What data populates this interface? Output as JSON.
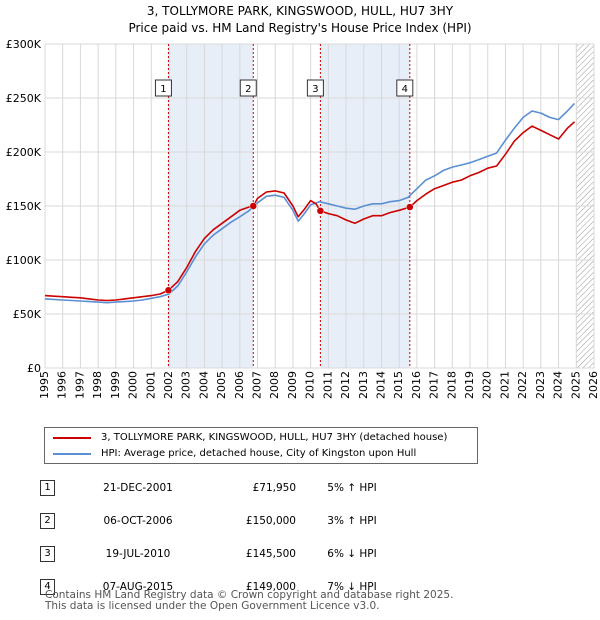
{
  "title_line1": "3, TOLLYMORE PARK, KINGSWOOD, HULL, HU7 3HY",
  "title_line2": "Price paid vs. HM Land Registry's House Price Index (HPI)",
  "chart_data": {
    "type": "line",
    "title": "3, TOLLYMORE PARK, KINGSWOOD, HULL, HU7 3HY — Price paid vs. HM Land Registry's House Price Index (HPI)",
    "xlabel": "",
    "ylabel": "",
    "xlim": [
      1995,
      2026
    ],
    "ylim": [
      0,
      300000
    ],
    "x_ticks": [
      1995,
      1996,
      1997,
      1998,
      1999,
      2000,
      2001,
      2002,
      2003,
      2004,
      2005,
      2006,
      2007,
      2008,
      2009,
      2010,
      2011,
      2012,
      2013,
      2014,
      2015,
      2016,
      2017,
      2018,
      2019,
      2020,
      2021,
      2022,
      2023,
      2024,
      2025,
      2026
    ],
    "y_ticks": [
      {
        "value": 0,
        "label": "£0"
      },
      {
        "value": 50000,
        "label": "£50K"
      },
      {
        "value": 100000,
        "label": "£100K"
      },
      {
        "value": 150000,
        "label": "£150K"
      },
      {
        "value": 200000,
        "label": "£200K"
      },
      {
        "value": 250000,
        "label": "£250K"
      },
      {
        "value": 300000,
        "label": "£300K"
      }
    ],
    "grid": true,
    "forecast_hatch_from": 2025.0,
    "series": [
      {
        "name": "3, TOLLYMORE PARK, KINGSWOOD, HULL, HU7 3HY (detached house)",
        "color": "#cc0000",
        "x": [
          1995.0,
          1995.5,
          1996.0,
          1996.5,
          1997.0,
          1997.5,
          1998.0,
          1998.5,
          1999.0,
          1999.5,
          2000.0,
          2000.5,
          2001.0,
          2001.5,
          2001.97,
          2002.5,
          2003.0,
          2003.5,
          2004.0,
          2004.5,
          2005.0,
          2005.5,
          2006.0,
          2006.5,
          2006.76,
          2007.0,
          2007.5,
          2008.0,
          2008.5,
          2009.0,
          2009.3,
          2009.6,
          2010.0,
          2010.3,
          2010.55,
          2011.0,
          2011.5,
          2012.0,
          2012.5,
          2013.0,
          2013.5,
          2014.0,
          2014.5,
          2015.0,
          2015.6,
          2016.0,
          2016.5,
          2017.0,
          2017.5,
          2018.0,
          2018.5,
          2019.0,
          2019.5,
          2020.0,
          2020.5,
          2021.0,
          2021.5,
          2022.0,
          2022.5,
          2023.0,
          2023.5,
          2024.0,
          2024.5,
          2024.9
        ],
        "values": [
          67000,
          66500,
          66000,
          65500,
          65000,
          64000,
          63000,
          62500,
          63000,
          64000,
          65000,
          66000,
          67000,
          68500,
          71950,
          80000,
          93000,
          108000,
          120000,
          128000,
          134000,
          140000,
          146000,
          149000,
          150000,
          157000,
          163000,
          164000,
          162000,
          150000,
          140000,
          146000,
          155000,
          152000,
          145500,
          143000,
          141000,
          137000,
          134000,
          138000,
          141000,
          141000,
          144000,
          146000,
          149000,
          155000,
          161000,
          166000,
          169000,
          172000,
          174000,
          178000,
          181000,
          185000,
          187000,
          198000,
          210000,
          218000,
          224000,
          220000,
          216000,
          212000,
          222000,
          228000
        ]
      },
      {
        "name": "HPI: Average price, detached house, City of Kingston upon Hull",
        "color": "#5b8fd4",
        "x": [
          1995.0,
          1995.5,
          1996.0,
          1996.5,
          1997.0,
          1997.5,
          1998.0,
          1998.5,
          1999.0,
          1999.5,
          2000.0,
          2000.5,
          2001.0,
          2001.5,
          2002.0,
          2002.5,
          2003.0,
          2003.5,
          2004.0,
          2004.5,
          2005.0,
          2005.5,
          2006.0,
          2006.5,
          2007.0,
          2007.5,
          2008.0,
          2008.5,
          2009.0,
          2009.3,
          2009.6,
          2010.0,
          2010.5,
          2011.0,
          2011.5,
          2012.0,
          2012.5,
          2013.0,
          2013.5,
          2014.0,
          2014.5,
          2015.0,
          2015.5,
          2016.0,
          2016.5,
          2017.0,
          2017.5,
          2018.0,
          2018.5,
          2019.0,
          2019.5,
          2020.0,
          2020.5,
          2021.0,
          2021.5,
          2022.0,
          2022.5,
          2023.0,
          2023.5,
          2024.0,
          2024.5,
          2024.9
        ],
        "values": [
          64000,
          63500,
          63000,
          62500,
          62000,
          61500,
          61000,
          60500,
          61000,
          61500,
          62000,
          63000,
          64500,
          66000,
          68500,
          76000,
          89000,
          103000,
          115000,
          123000,
          129000,
          135000,
          140000,
          145500,
          153000,
          159000,
          160000,
          158000,
          146000,
          136000,
          142000,
          151000,
          154000,
          152000,
          150000,
          148000,
          147000,
          150000,
          152000,
          152000,
          154000,
          155000,
          158000,
          166000,
          174000,
          178000,
          183000,
          186000,
          188000,
          190000,
          193000,
          196000,
          199000,
          211000,
          222000,
          232000,
          238000,
          236000,
          232000,
          230000,
          238000,
          245000
        ]
      }
    ],
    "sales": [
      {
        "n": "1",
        "x": 2001.97,
        "price": 71950
      },
      {
        "n": "2",
        "x": 2006.76,
        "price": 150000
      },
      {
        "n": "3",
        "x": 2010.55,
        "price": 145500
      },
      {
        "n": "4",
        "x": 2015.6,
        "price": 149000
      }
    ]
  },
  "legend": {
    "property": "3, TOLLYMORE PARK, KINGSWOOD, HULL, HU7 3HY (detached house)",
    "hpi": "HPI: Average price, detached house, City of Kingston upon Hull"
  },
  "table": [
    {
      "n": "1",
      "date": "21-DEC-2001",
      "price": "£71,950",
      "hpi": "5% ↑ HPI"
    },
    {
      "n": "2",
      "date": "06-OCT-2006",
      "price": "£150,000",
      "hpi": "3% ↑ HPI"
    },
    {
      "n": "3",
      "date": "19-JUL-2010",
      "price": "£145,500",
      "hpi": "6% ↓ HPI"
    },
    {
      "n": "4",
      "date": "07-AUG-2015",
      "price": "£149,000",
      "hpi": "7% ↓ HPI"
    }
  ],
  "footer_line1": "Contains HM Land Registry data © Crown copyright and database right 2025.",
  "footer_line2": "This data is licensed under the Open Government Licence v3.0.",
  "colors": {
    "red": "#cc0000",
    "blue": "#5b8fd4",
    "shade": "#e8eef8",
    "grid": "#d8d8d8"
  }
}
